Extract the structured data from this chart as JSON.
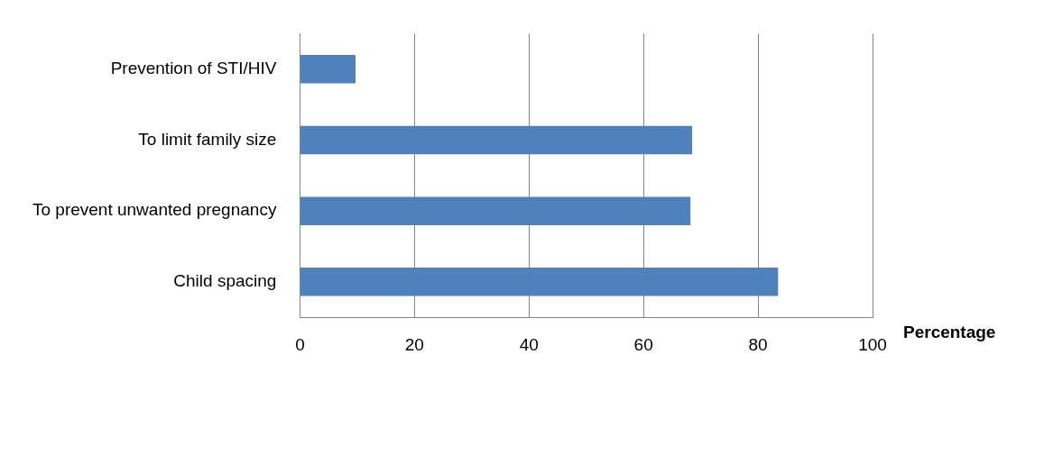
{
  "chart_data": {
    "type": "bar",
    "orientation": "horizontal",
    "xlabel": "Percentage",
    "categories": [
      "Prevention of STI/HIV",
      "To limit family size",
      "To prevent unwanted pregnancy",
      "Child spacing"
    ],
    "values": [
      9.7,
      68.5,
      68.2,
      83.5
    ],
    "color": "#4f81bd",
    "xlim": [
      0,
      100
    ],
    "xticks": [
      0,
      20,
      40,
      60,
      80,
      100
    ],
    "grid": "x",
    "legend": false
  }
}
